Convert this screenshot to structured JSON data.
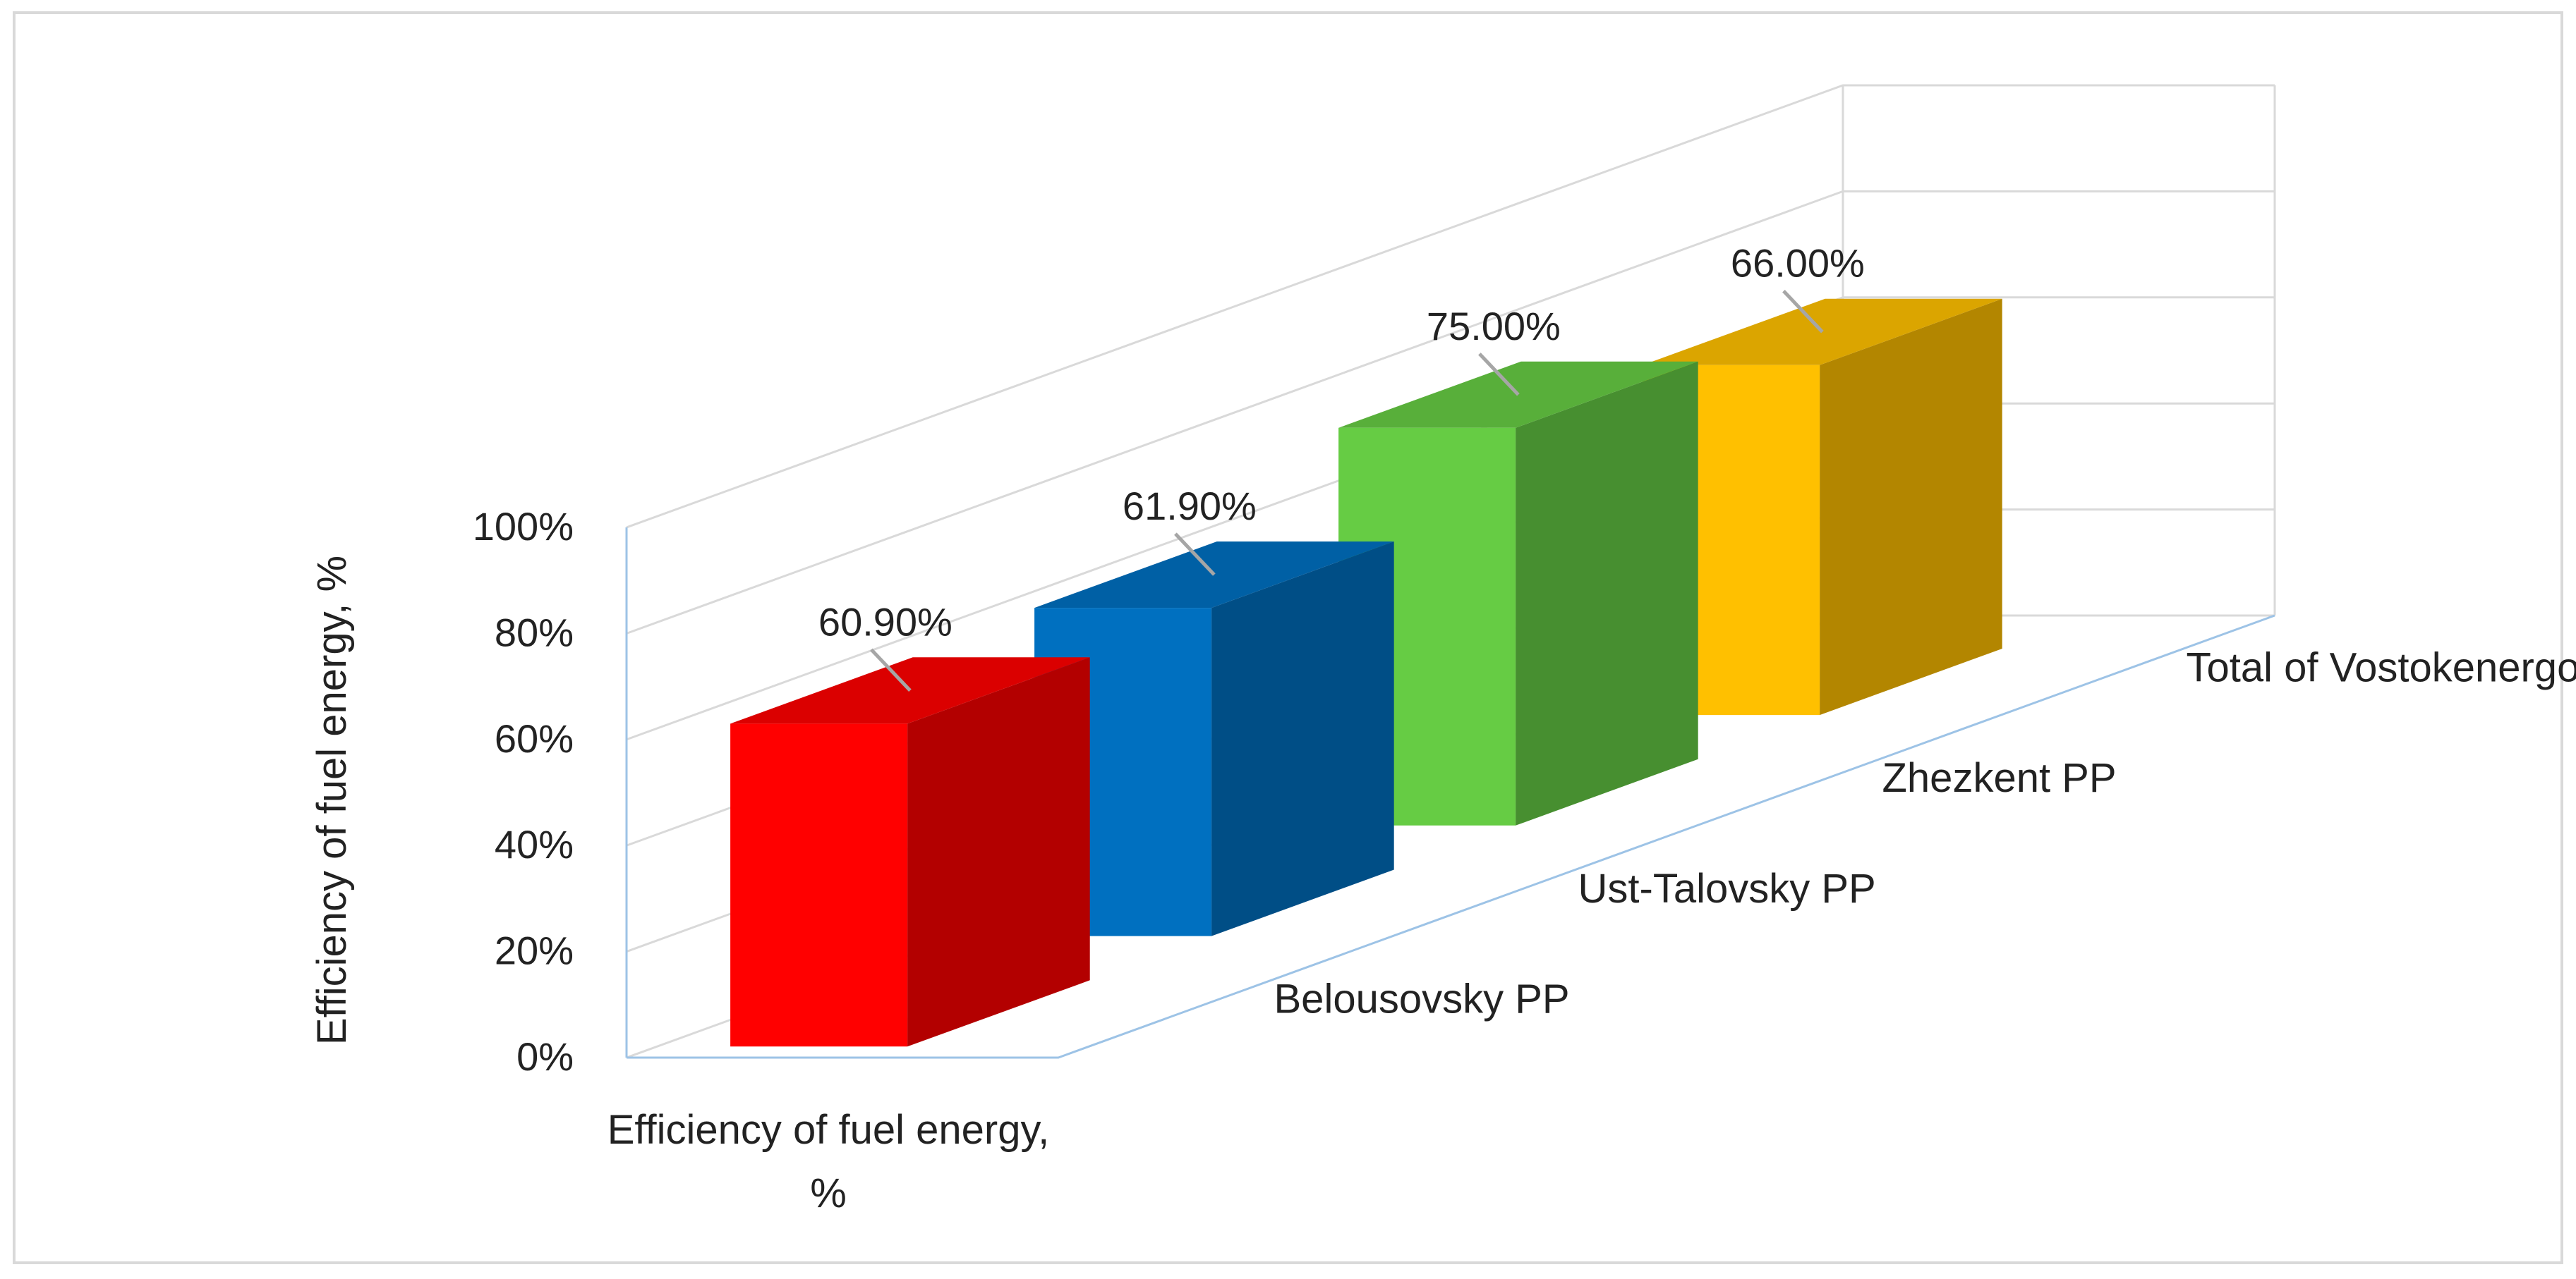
{
  "chart_data": {
    "type": "bar",
    "style": "3d-column",
    "series_axis_title": "Efficiency of fuel energy, %",
    "ylabel": "Efficiency of fuel energy, %",
    "ylim": [
      0,
      100
    ],
    "y_ticks": [
      "0%",
      "20%",
      "40%",
      "60%",
      "80%",
      "100%"
    ],
    "y_tick_values": [
      0,
      20,
      40,
      60,
      80,
      100
    ],
    "grid": true,
    "legend": "none",
    "series": [
      {
        "category": "Belousovsky PP",
        "value": 60.9,
        "label": "60.90%",
        "color": "#FF0000"
      },
      {
        "category": "Ust-Talovsky PP",
        "value": 61.9,
        "label": "61.90%",
        "color": "#0070C0"
      },
      {
        "category": "Zhezkent PP",
        "value": 75.0,
        "label": "75.00%",
        "color": "#66CC44"
      },
      {
        "category": "Total of Vostokenergo LLP",
        "value": 66.0,
        "label": "66.00%",
        "color": "#FFC000"
      }
    ]
  }
}
